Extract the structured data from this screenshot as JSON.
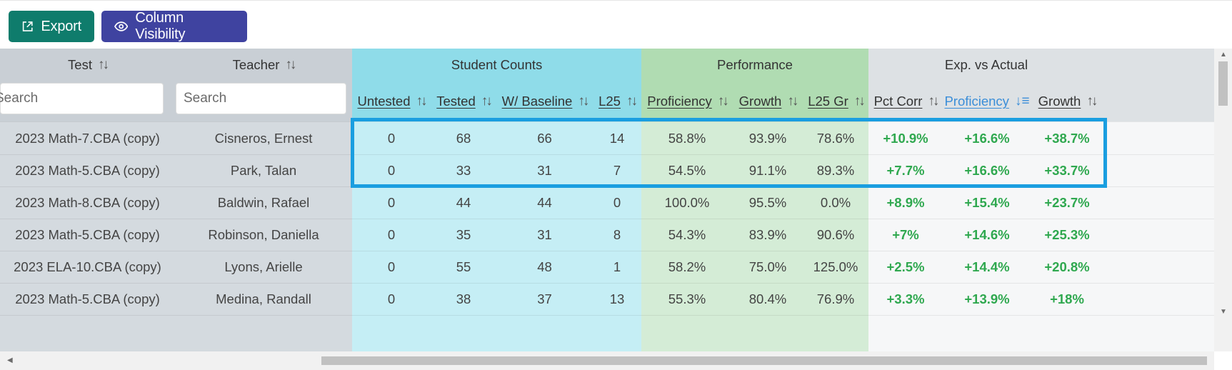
{
  "toolbar": {
    "export_label": "Export",
    "column_visibility_label": "Column Visibility"
  },
  "groups": {
    "student_counts": "Student Counts",
    "performance": "Performance",
    "exp_vs_actual": "Exp. vs Actual"
  },
  "columns": {
    "test": "Test",
    "teacher": "Teacher",
    "untested": "Untested",
    "tested": "Tested",
    "w_baseline": "W/ Baseline",
    "l25": "L25",
    "proficiency": "Proficiency",
    "growth": "Growth",
    "l25_gr": "L25 Gr",
    "pct_corr": "Pct Corr",
    "exp_proficiency": "Proficiency",
    "exp_growth": "Growth"
  },
  "sort_glyph": "↑↓",
  "sort_active_glyph": "↓≡",
  "filters": {
    "test_placeholder": "Search",
    "teacher_placeholder": "Search"
  },
  "colors": {
    "gray_col": "#d4dadf",
    "gray_hdr": "#c9cfd5",
    "counts_hdr": "#8fdce9",
    "counts_cell": "#c5eef5",
    "perf_hdr": "#b0dcb2",
    "perf_cell": "#d4ecd6",
    "exp_hdr": "#dde1e4",
    "exp_cell": "#f6f7f8",
    "highlight": "#1a9ee0",
    "positive": "#2fa84f",
    "export_btn": "#0f7c6c",
    "column_visibility_btn": "#3f43a0"
  },
  "rows": [
    {
      "test": "2023 Math-7.CBA (copy)",
      "teacher": "Cisneros, Ernest",
      "untested": "0",
      "tested": "68",
      "w_baseline": "66",
      "l25": "14",
      "proficiency": "58.8%",
      "growth": "93.9%",
      "l25_gr": "78.6%",
      "pct_corr": "+10.9%",
      "exp_proficiency": "+16.6%",
      "exp_growth": "+38.7%"
    },
    {
      "test": "2023 Math-5.CBA (copy)",
      "teacher": "Park, Talan",
      "untested": "0",
      "tested": "33",
      "w_baseline": "31",
      "l25": "7",
      "proficiency": "54.5%",
      "growth": "91.1%",
      "l25_gr": "89.3%",
      "pct_corr": "+7.7%",
      "exp_proficiency": "+16.6%",
      "exp_growth": "+33.7%"
    },
    {
      "test": "2023 Math-8.CBA (copy)",
      "teacher": "Baldwin, Rafael",
      "untested": "0",
      "tested": "44",
      "w_baseline": "44",
      "l25": "0",
      "proficiency": "100.0%",
      "growth": "95.5%",
      "l25_gr": "0.0%",
      "pct_corr": "+8.9%",
      "exp_proficiency": "+15.4%",
      "exp_growth": "+23.7%"
    },
    {
      "test": "2023 Math-5.CBA (copy)",
      "teacher": "Robinson, Daniella",
      "untested": "0",
      "tested": "35",
      "w_baseline": "31",
      "l25": "8",
      "proficiency": "54.3%",
      "growth": "83.9%",
      "l25_gr": "90.6%",
      "pct_corr": "+7%",
      "exp_proficiency": "+14.6%",
      "exp_growth": "+25.3%"
    },
    {
      "test": "2023 ELA-10.CBA (copy)",
      "teacher": "Lyons, Arielle",
      "untested": "0",
      "tested": "55",
      "w_baseline": "48",
      "l25": "1",
      "proficiency": "58.2%",
      "growth": "75.0%",
      "l25_gr": "125.0%",
      "pct_corr": "+2.5%",
      "exp_proficiency": "+14.4%",
      "exp_growth": "+20.8%"
    },
    {
      "test": "2023 Math-5.CBA (copy)",
      "teacher": "Medina, Randall",
      "untested": "0",
      "tested": "38",
      "w_baseline": "37",
      "l25": "13",
      "proficiency": "55.3%",
      "growth": "80.4%",
      "l25_gr": "76.9%",
      "pct_corr": "+3.3%",
      "exp_proficiency": "+13.9%",
      "exp_growth": "+18%"
    }
  ]
}
